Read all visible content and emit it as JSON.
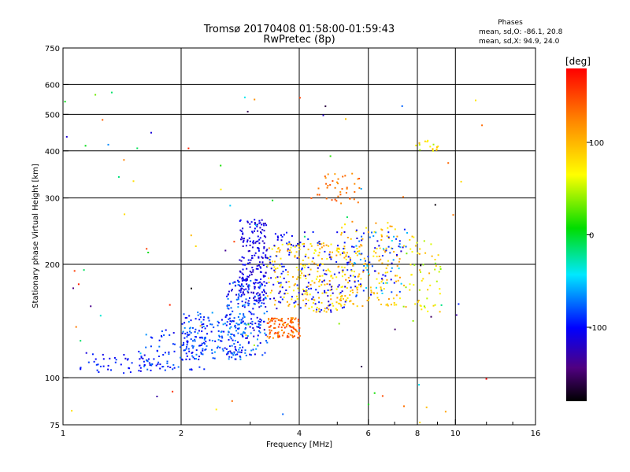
{
  "chart_data": {
    "type": "scatter",
    "title": "Tromsø 20170408 01:58:00-01:59:43",
    "subtitle": "RwPretec (8p)",
    "xlabel": "Frequency [MHz]",
    "ylabel": "Stationary phase Virtual Height [km]",
    "x_scale": "log",
    "y_scale": "log",
    "xlim": [
      1,
      16
    ],
    "ylim": [
      75,
      750
    ],
    "x_ticks": [
      1,
      2,
      4,
      6,
      8,
      10,
      16
    ],
    "x_ticklabels": [
      "1",
      "2",
      "4",
      "6",
      "8",
      "10",
      "16"
    ],
    "x_minor_ticks": [
      3,
      5,
      7,
      9,
      12,
      14
    ],
    "y_ticks": [
      75,
      100,
      200,
      300,
      400,
      500,
      600,
      750
    ],
    "y_ticklabels": [
      "75",
      "100",
      "200",
      "300",
      "400",
      "500",
      "600",
      "750"
    ],
    "grid": true,
    "stats": {
      "heading": "Phases",
      "o_line": "mean, sd,O: -86.1, 20.8",
      "x_line": "mean, sd,X:  94.9, 24.0"
    },
    "colorbar": {
      "label": "[deg]",
      "range": [
        -180,
        180
      ],
      "ticks": [
        -100,
        0,
        100
      ],
      "tick_labels": [
        "-100",
        "0",
        "100"
      ]
    },
    "series": [
      {
        "colour": "phase",
        "clusters": [
          {
            "x": [
              1.1,
              1.7
            ],
            "y": [
              102,
              118
            ],
            "phase": [
              -115,
              -85
            ],
            "n": 50
          },
          {
            "x": [
              1.6,
              2.3
            ],
            "y": [
              105,
              135
            ],
            "phase": [
              -110,
              -70
            ],
            "n": 90
          },
          {
            "x": [
              2.0,
              2.9
            ],
            "y": [
              112,
              150
            ],
            "phase": [
              -110,
              -60
            ],
            "n": 170
          },
          {
            "x": [
              2.6,
              3.3
            ],
            "y": [
              115,
              185
            ],
            "phase": [
              -120,
              -60
            ],
            "n": 190
          },
          {
            "x": [
              2.8,
              3.3
            ],
            "y": [
              160,
              265
            ],
            "phase": [
              -125,
              -95
            ],
            "n": 200
          },
          {
            "x": [
              3.3,
              4.0
            ],
            "y": [
              128,
              145
            ],
            "phase": [
              110,
              160
            ],
            "n": 110
          },
          {
            "x": [
              3.3,
              5.3
            ],
            "y": [
              150,
              230
            ],
            "phase": [
              60,
              120
            ],
            "n": 230
          },
          {
            "x": [
              3.3,
              5.5
            ],
            "y": [
              150,
              245
            ],
            "phase": [
              -120,
              -90
            ],
            "n": 150
          },
          {
            "x": [
              4.4,
              5.7
            ],
            "y": [
              290,
              350
            ],
            "phase": [
              110,
              150
            ],
            "n": 40
          },
          {
            "x": [
              5.0,
              7.2
            ],
            "y": [
              155,
              260
            ],
            "phase": [
              70,
              120
            ],
            "n": 150
          },
          {
            "x": [
              5.5,
              7.5
            ],
            "y": [
              165,
              250
            ],
            "phase": [
              -120,
              -40
            ],
            "n": 80
          },
          {
            "x": [
              7.3,
              9.2
            ],
            "y": [
              150,
              240
            ],
            "phase": [
              30,
              110
            ],
            "n": 60
          },
          {
            "x": [
              7.8,
              9.0
            ],
            "y": [
              400,
              430
            ],
            "phase": [
              40,
              110
            ],
            "n": 18
          },
          {
            "x": [
              1.0,
              12.0
            ],
            "y": [
              75,
              600
            ],
            "phase": [
              -180,
              180
            ],
            "n": 90
          }
        ]
      }
    ]
  }
}
